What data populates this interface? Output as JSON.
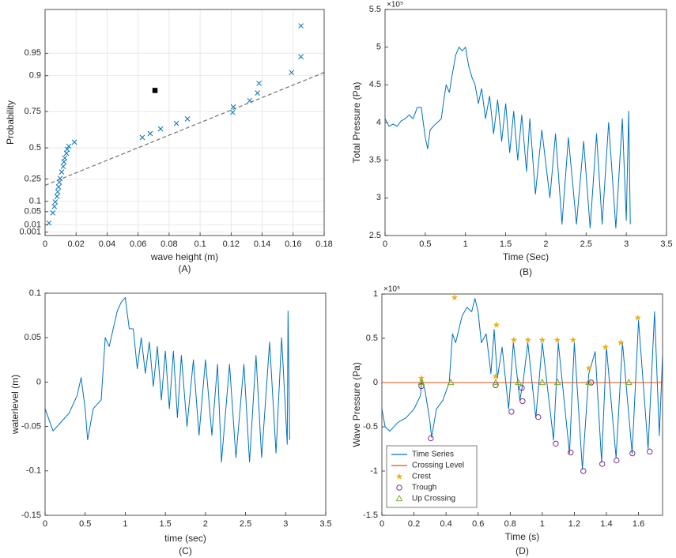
{
  "chart_data": [
    {
      "type": "scatter",
      "caption": "(A)",
      "xlabel": "wave height (m)",
      "ylabel": "Probability",
      "yscale": "rayleigh",
      "grid": true,
      "xlim": [
        0,
        0.18
      ],
      "xticks": [
        0,
        0.02,
        0.04,
        0.06,
        0.08,
        0.1,
        0.12,
        0.14,
        0.16,
        0.18
      ],
      "ylim": [
        0,
        0.99
      ],
      "yticks": [
        0.001,
        0.01,
        0.05,
        0.1,
        0.25,
        0.5,
        0.75,
        0.9,
        0.95
      ],
      "series": [
        {
          "marker": "x",
          "color": "#0072bd",
          "x": [
            0.0025,
            0.005,
            0.006,
            0.0066,
            0.0077,
            0.0082,
            0.0087,
            0.0092,
            0.0097,
            0.0107,
            0.0117,
            0.0122,
            0.0127,
            0.0138,
            0.0143,
            0.0153,
            0.0189,
            0.0627,
            0.0678,
            0.0745,
            0.0847,
            0.0918,
            0.121,
            0.1214,
            0.132,
            0.137,
            0.138,
            0.159,
            0.165,
            0.165
          ],
          "values": [
            0.014,
            0.045,
            0.073,
            0.097,
            0.129,
            0.159,
            0.192,
            0.226,
            0.255,
            0.305,
            0.349,
            0.387,
            0.419,
            0.457,
            0.489,
            0.513,
            0.544,
            0.58,
            0.608,
            0.641,
            0.678,
            0.707,
            0.745,
            0.775,
            0.806,
            0.84,
            0.876,
            0.909,
            0.944,
            0.981
          ]
        },
        {
          "marker": "dashed",
          "color": "#666666",
          "x": [
            0,
            0.18
          ],
          "values": [
            0.203,
            0.909
          ]
        },
        {
          "marker": "square",
          "color": "#000000",
          "x": [
            0.0709
          ],
          "values": [
            0.85
          ]
        }
      ]
    },
    {
      "type": "line",
      "caption": "(B)",
      "xlabel": "Time (Sec)",
      "ylabel": "Total Pressure (Pa)",
      "y_multiplier": "×10⁵",
      "grid": false,
      "xlim": [
        0,
        3.5
      ],
      "xticks": [
        0,
        0.5,
        1,
        1.5,
        2,
        2.5,
        3,
        3.5
      ],
      "ylim": [
        250000,
        550000
      ],
      "yticks": [
        {
          "value": 250000,
          "label": "2.5"
        },
        {
          "value": 300000,
          "label": "3"
        },
        {
          "value": 350000,
          "label": "3.5"
        },
        {
          "value": 400000,
          "label": "4"
        },
        {
          "value": 450000,
          "label": "4.5"
        },
        {
          "value": 500000,
          "label": "5"
        },
        {
          "value": 550000,
          "label": "5.5"
        }
      ],
      "series": [
        {
          "marker": "line",
          "color": "#0072bd",
          "x": [
            0,
            0.05,
            0.1,
            0.15,
            0.2,
            0.25,
            0.3,
            0.35,
            0.4,
            0.45,
            0.5,
            0.53,
            0.56,
            0.6,
            0.65,
            0.7,
            0.73,
            0.76,
            0.8,
            0.83,
            0.88,
            0.92,
            0.96,
            1.0,
            1.04,
            1.08,
            1.12,
            1.16,
            1.2,
            1.25,
            1.3,
            1.35,
            1.4,
            1.45,
            1.5,
            1.55,
            1.6,
            1.65,
            1.7,
            1.76,
            1.8,
            1.87,
            1.95,
            2.05,
            2.12,
            2.2,
            2.28,
            2.38,
            2.47,
            2.55,
            2.63,
            2.7,
            2.78,
            2.87,
            2.95,
            3.0,
            3.03,
            3.05
          ],
          "values": [
            405000,
            395000,
            398000,
            395000,
            402000,
            405000,
            410000,
            405000,
            420000,
            420000,
            380000,
            365000,
            390000,
            395000,
            400000,
            405000,
            430000,
            450000,
            440000,
            460000,
            490000,
            500000,
            495000,
            500000,
            475000,
            460000,
            450000,
            425000,
            445000,
            405000,
            435000,
            385000,
            430000,
            375000,
            425000,
            360000,
            415000,
            350000,
            410000,
            335000,
            405000,
            305000,
            390000,
            300000,
            385000,
            265000,
            380000,
            265000,
            375000,
            260000,
            385000,
            265000,
            400000,
            260000,
            405000,
            270000,
            415000,
            265000
          ]
        }
      ]
    },
    {
      "type": "line",
      "caption": "(C)",
      "xlabel": "time (sec)",
      "ylabel": "waterlevel (m)",
      "grid": false,
      "xlim": [
        0,
        3.5
      ],
      "xticks": [
        0,
        0.5,
        1,
        1.5,
        2,
        2.5,
        3,
        3.5
      ],
      "ylim": [
        -0.15,
        0.1
      ],
      "yticks": [
        -0.15,
        -0.1,
        -0.05,
        0,
        0.05,
        0.1
      ],
      "series": [
        {
          "marker": "line",
          "color": "#0072bd",
          "x": [
            0,
            0.1,
            0.2,
            0.3,
            0.4,
            0.45,
            0.5,
            0.53,
            0.6,
            0.7,
            0.75,
            0.8,
            0.9,
            0.95,
            1.0,
            1.05,
            1.1,
            1.15,
            1.2,
            1.25,
            1.3,
            1.35,
            1.4,
            1.45,
            1.5,
            1.55,
            1.6,
            1.65,
            1.7,
            1.77,
            1.85,
            1.92,
            2.0,
            2.08,
            2.15,
            2.2,
            2.3,
            2.38,
            2.48,
            2.55,
            2.63,
            2.7,
            2.8,
            2.88,
            2.95,
            3.02,
            3.03,
            3.05
          ],
          "values": [
            -0.03,
            -0.055,
            -0.045,
            -0.035,
            -0.015,
            0.005,
            -0.03,
            -0.065,
            -0.03,
            -0.02,
            0.05,
            0.04,
            0.08,
            0.09,
            0.095,
            0.06,
            0.06,
            0.015,
            0.05,
            0.01,
            0.045,
            -0.005,
            0.04,
            -0.02,
            0.035,
            -0.03,
            0.035,
            -0.04,
            0.03,
            -0.05,
            0.025,
            -0.06,
            0.025,
            -0.06,
            0.02,
            -0.09,
            0.02,
            -0.085,
            0.02,
            -0.09,
            0.03,
            -0.085,
            0.045,
            -0.08,
            0.05,
            -0.07,
            0.08,
            -0.065
          ]
        }
      ]
    },
    {
      "type": "line",
      "caption": "(D)",
      "xlabel": "Time (s)",
      "ylabel": "Wave Pressure (Pa)",
      "y_multiplier": "×10⁵",
      "grid": false,
      "legend": "lower left",
      "xlim": [
        0,
        1.75
      ],
      "xticks": [
        0,
        0.2,
        0.4,
        0.6,
        0.8,
        1,
        1.2,
        1.4,
        1.6
      ],
      "ylim": [
        -150000,
        100000
      ],
      "yticks": [
        {
          "value": -150000,
          "label": "-1.5"
        },
        {
          "value": -100000,
          "label": "-1"
        },
        {
          "value": -50000,
          "label": "-0.5"
        },
        {
          "value": 0,
          "label": "0"
        },
        {
          "value": 50000,
          "label": "0.5"
        },
        {
          "value": 100000,
          "label": "1"
        }
      ],
      "series": [
        {
          "name": "Time Series",
          "marker": "line",
          "color": "#0072bd",
          "x": [
            0,
            0.02,
            0.05,
            0.1,
            0.15,
            0.2,
            0.24,
            0.25,
            0.27,
            0.3,
            0.31,
            0.34,
            0.38,
            0.42,
            0.44,
            0.46,
            0.5,
            0.53,
            0.56,
            0.58,
            0.6,
            0.62,
            0.65,
            0.68,
            0.7,
            0.72,
            0.75,
            0.79,
            0.82,
            0.86,
            0.88,
            0.91,
            0.96,
            1.0,
            1.07,
            1.1,
            1.17,
            1.2,
            1.25,
            1.29,
            1.33,
            1.37,
            1.4,
            1.46,
            1.5,
            1.56,
            1.6,
            1.66,
            1.7,
            1.73,
            1.75
          ],
          "values": [
            -30000,
            -50000,
            -55000,
            -45000,
            -40000,
            -30000,
            -15000,
            5000,
            -10000,
            -45000,
            -62000,
            -30000,
            -20000,
            0,
            55000,
            45000,
            75000,
            85000,
            80000,
            95000,
            80000,
            45000,
            55000,
            10000,
            60000,
            5000,
            40000,
            -30000,
            45000,
            -20000,
            0,
            45000,
            -40000,
            45000,
            -65000,
            45000,
            -80000,
            45000,
            -98000,
            10000,
            35000,
            -90000,
            40000,
            -85000,
            45000,
            -80000,
            70000,
            -75000,
            80000,
            -60000,
            30000
          ]
        },
        {
          "name": "Crossing Level",
          "marker": "line",
          "color": "#d95319",
          "x": [
            0,
            1.75
          ],
          "values": [
            0,
            0
          ]
        },
        {
          "name": "Crest",
          "marker": "star",
          "color": "#edb120",
          "x": [
            0.246,
            0.453,
            0.709,
            0.714,
            0.823,
            0.911,
            1.0,
            1.094,
            1.192,
            1.29,
            1.394,
            1.49,
            1.596
          ],
          "values": [
            5000,
            96000,
            7000,
            65000,
            48000,
            48000,
            48000,
            48000,
            48000,
            16000,
            40000,
            45000,
            73000
          ]
        },
        {
          "name": "Trough",
          "marker": "circle",
          "color": "#7e2f8e",
          "x": [
            0.246,
            0.305,
            0.709,
            0.808,
            0.872,
            0.877,
            0.975,
            1.084,
            1.177,
            1.256,
            1.305,
            1.374,
            1.463,
            1.562,
            1.67
          ],
          "values": [
            -4000,
            -63000,
            -3000,
            -33000,
            -6000,
            -21000,
            -39000,
            -69000,
            -79000,
            -100000,
            0,
            -92000,
            -88000,
            -80000,
            -78000
          ]
        },
        {
          "name": "Up Crossing",
          "marker": "triangle",
          "color": "#77ac30",
          "x": [
            0.246,
            0.43,
            0.71,
            0.85,
            1.0,
            1.095,
            1.29,
            1.54
          ],
          "values": [
            0,
            0,
            0,
            0,
            0,
            0,
            0,
            0
          ]
        }
      ]
    }
  ]
}
